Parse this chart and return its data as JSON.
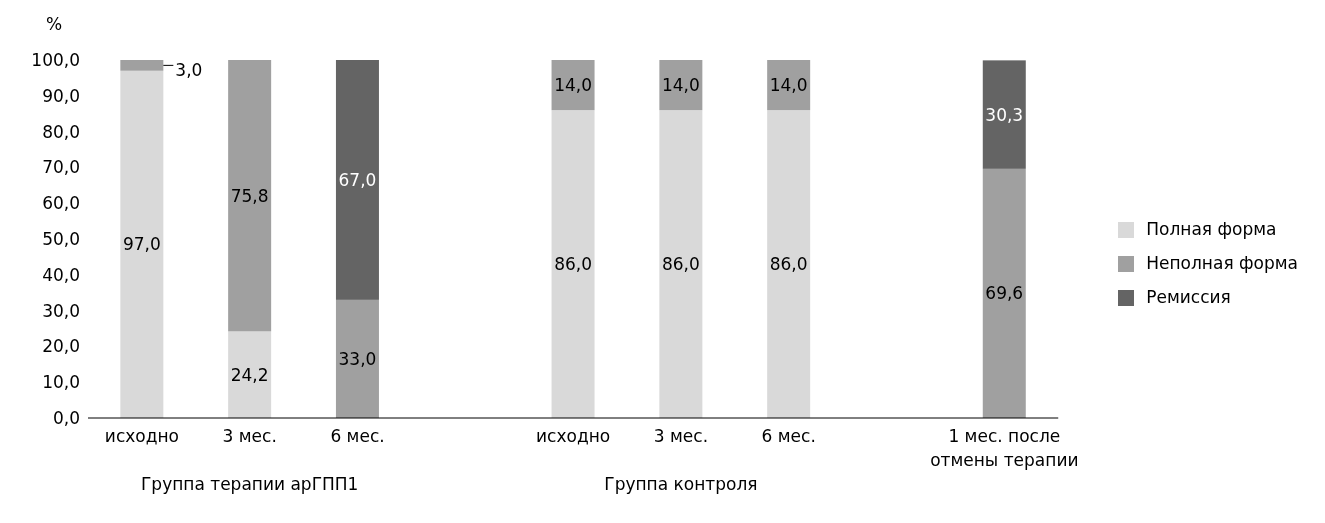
{
  "chart_data": {
    "type": "bar",
    "stacked": true,
    "ylabel": "%",
    "categories": [
      "исходно",
      "3 мес.",
      "6 мес.",
      null,
      "исходно",
      "3 мес.",
      "6 мес.",
      null,
      "1 мес. после отмены терапии"
    ],
    "series": [
      {
        "name": "Полная форма",
        "color": "#d9d9d9",
        "values": [
          97.0,
          24.2,
          null,
          null,
          86.0,
          86.0,
          86.0,
          null,
          null
        ],
        "value_labels": [
          "97,0",
          "24,2",
          null,
          null,
          "86,0",
          "86,0",
          "86,0",
          null,
          null
        ]
      },
      {
        "name": "Неполная форма",
        "color": "#a0a0a0",
        "values": [
          3.0,
          75.8,
          33.0,
          null,
          14.0,
          14.0,
          14.0,
          null,
          69.6
        ],
        "value_labels": [
          "3,0",
          "75,8",
          "33,0",
          null,
          "14,0",
          "14,0",
          "14,0",
          null,
          "69,6"
        ]
      },
      {
        "name": "Ремиссия",
        "color": "#646464",
        "values": [
          null,
          null,
          67.0,
          null,
          null,
          null,
          null,
          null,
          30.3
        ],
        "value_labels": [
          null,
          null,
          "67,0",
          null,
          null,
          null,
          null,
          null,
          "30,3"
        ]
      }
    ],
    "ylim": [
      0,
      100
    ],
    "yticks": [
      {
        "value": 0,
        "label": "0,0"
      },
      {
        "value": 10,
        "label": "10,0"
      },
      {
        "value": 20,
        "label": "20,0"
      },
      {
        "value": 30,
        "label": "30,0"
      },
      {
        "value": 40,
        "label": "40,0"
      },
      {
        "value": 50,
        "label": "50,0"
      },
      {
        "value": 60,
        "label": "60,0"
      },
      {
        "value": 70,
        "label": "70,0"
      },
      {
        "value": 80,
        "label": "80,0"
      },
      {
        "value": 90,
        "label": "90,0"
      },
      {
        "value": 100,
        "label": "100,0"
      }
    ],
    "annotations": [
      "Группа терапии арГПП1",
      "Группа контроля"
    ],
    "grid": false,
    "legend": "right"
  }
}
